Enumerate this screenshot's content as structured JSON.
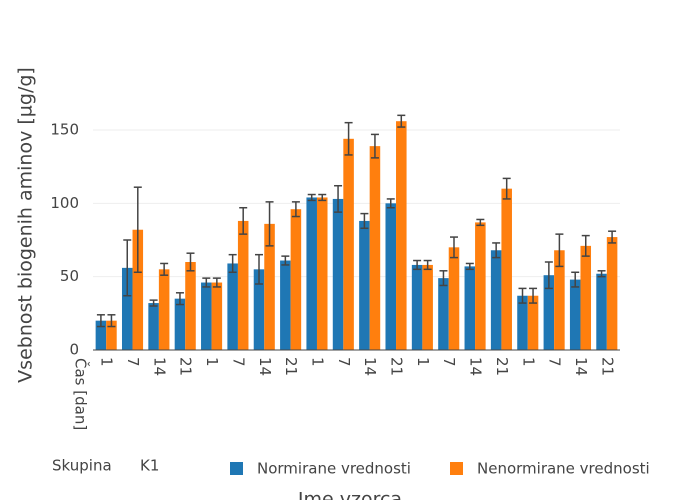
{
  "chart_data": {
    "type": "bar",
    "y_title": "Vsebnost biogenih aminov [µg/g]",
    "x_title": "Ime vzorca",
    "x_level_title": "Čas [dan]",
    "group_title": "Skupina",
    "group": "K1",
    "categories": [
      "1",
      "7",
      "14",
      "21",
      "1",
      "7",
      "14",
      "21",
      "1",
      "7",
      "14",
      "21",
      "1",
      "7",
      "14",
      "21",
      "1",
      "7",
      "14",
      "21"
    ],
    "series": [
      {
        "name": "Normirane vrednosti",
        "color": "#1f77b4",
        "values": [
          20,
          56,
          32,
          35,
          46,
          59,
          55,
          61,
          104,
          103,
          88,
          100,
          58,
          49,
          57,
          68,
          37,
          51,
          48,
          52
        ],
        "errors": [
          4,
          19,
          2,
          4,
          3,
          6,
          10,
          3,
          2,
          9,
          5,
          3,
          3,
          5,
          2,
          5,
          5,
          9,
          5,
          2
        ]
      },
      {
        "name": "Nenormirane vrednosti",
        "color": "#ff7f0e",
        "values": [
          20,
          82,
          55,
          60,
          46,
          88,
          86,
          96,
          104,
          144,
          139,
          156,
          58,
          70,
          87,
          110,
          37,
          68,
          71,
          77
        ],
        "errors": [
          4,
          29,
          4,
          6,
          3,
          9,
          15,
          5,
          2,
          11,
          8,
          4,
          3,
          7,
          2,
          7,
          5,
          11,
          7,
          4
        ]
      }
    ],
    "ylim": [
      0,
      165
    ],
    "yticks": [
      0,
      50,
      100,
      150
    ],
    "grid": true
  }
}
